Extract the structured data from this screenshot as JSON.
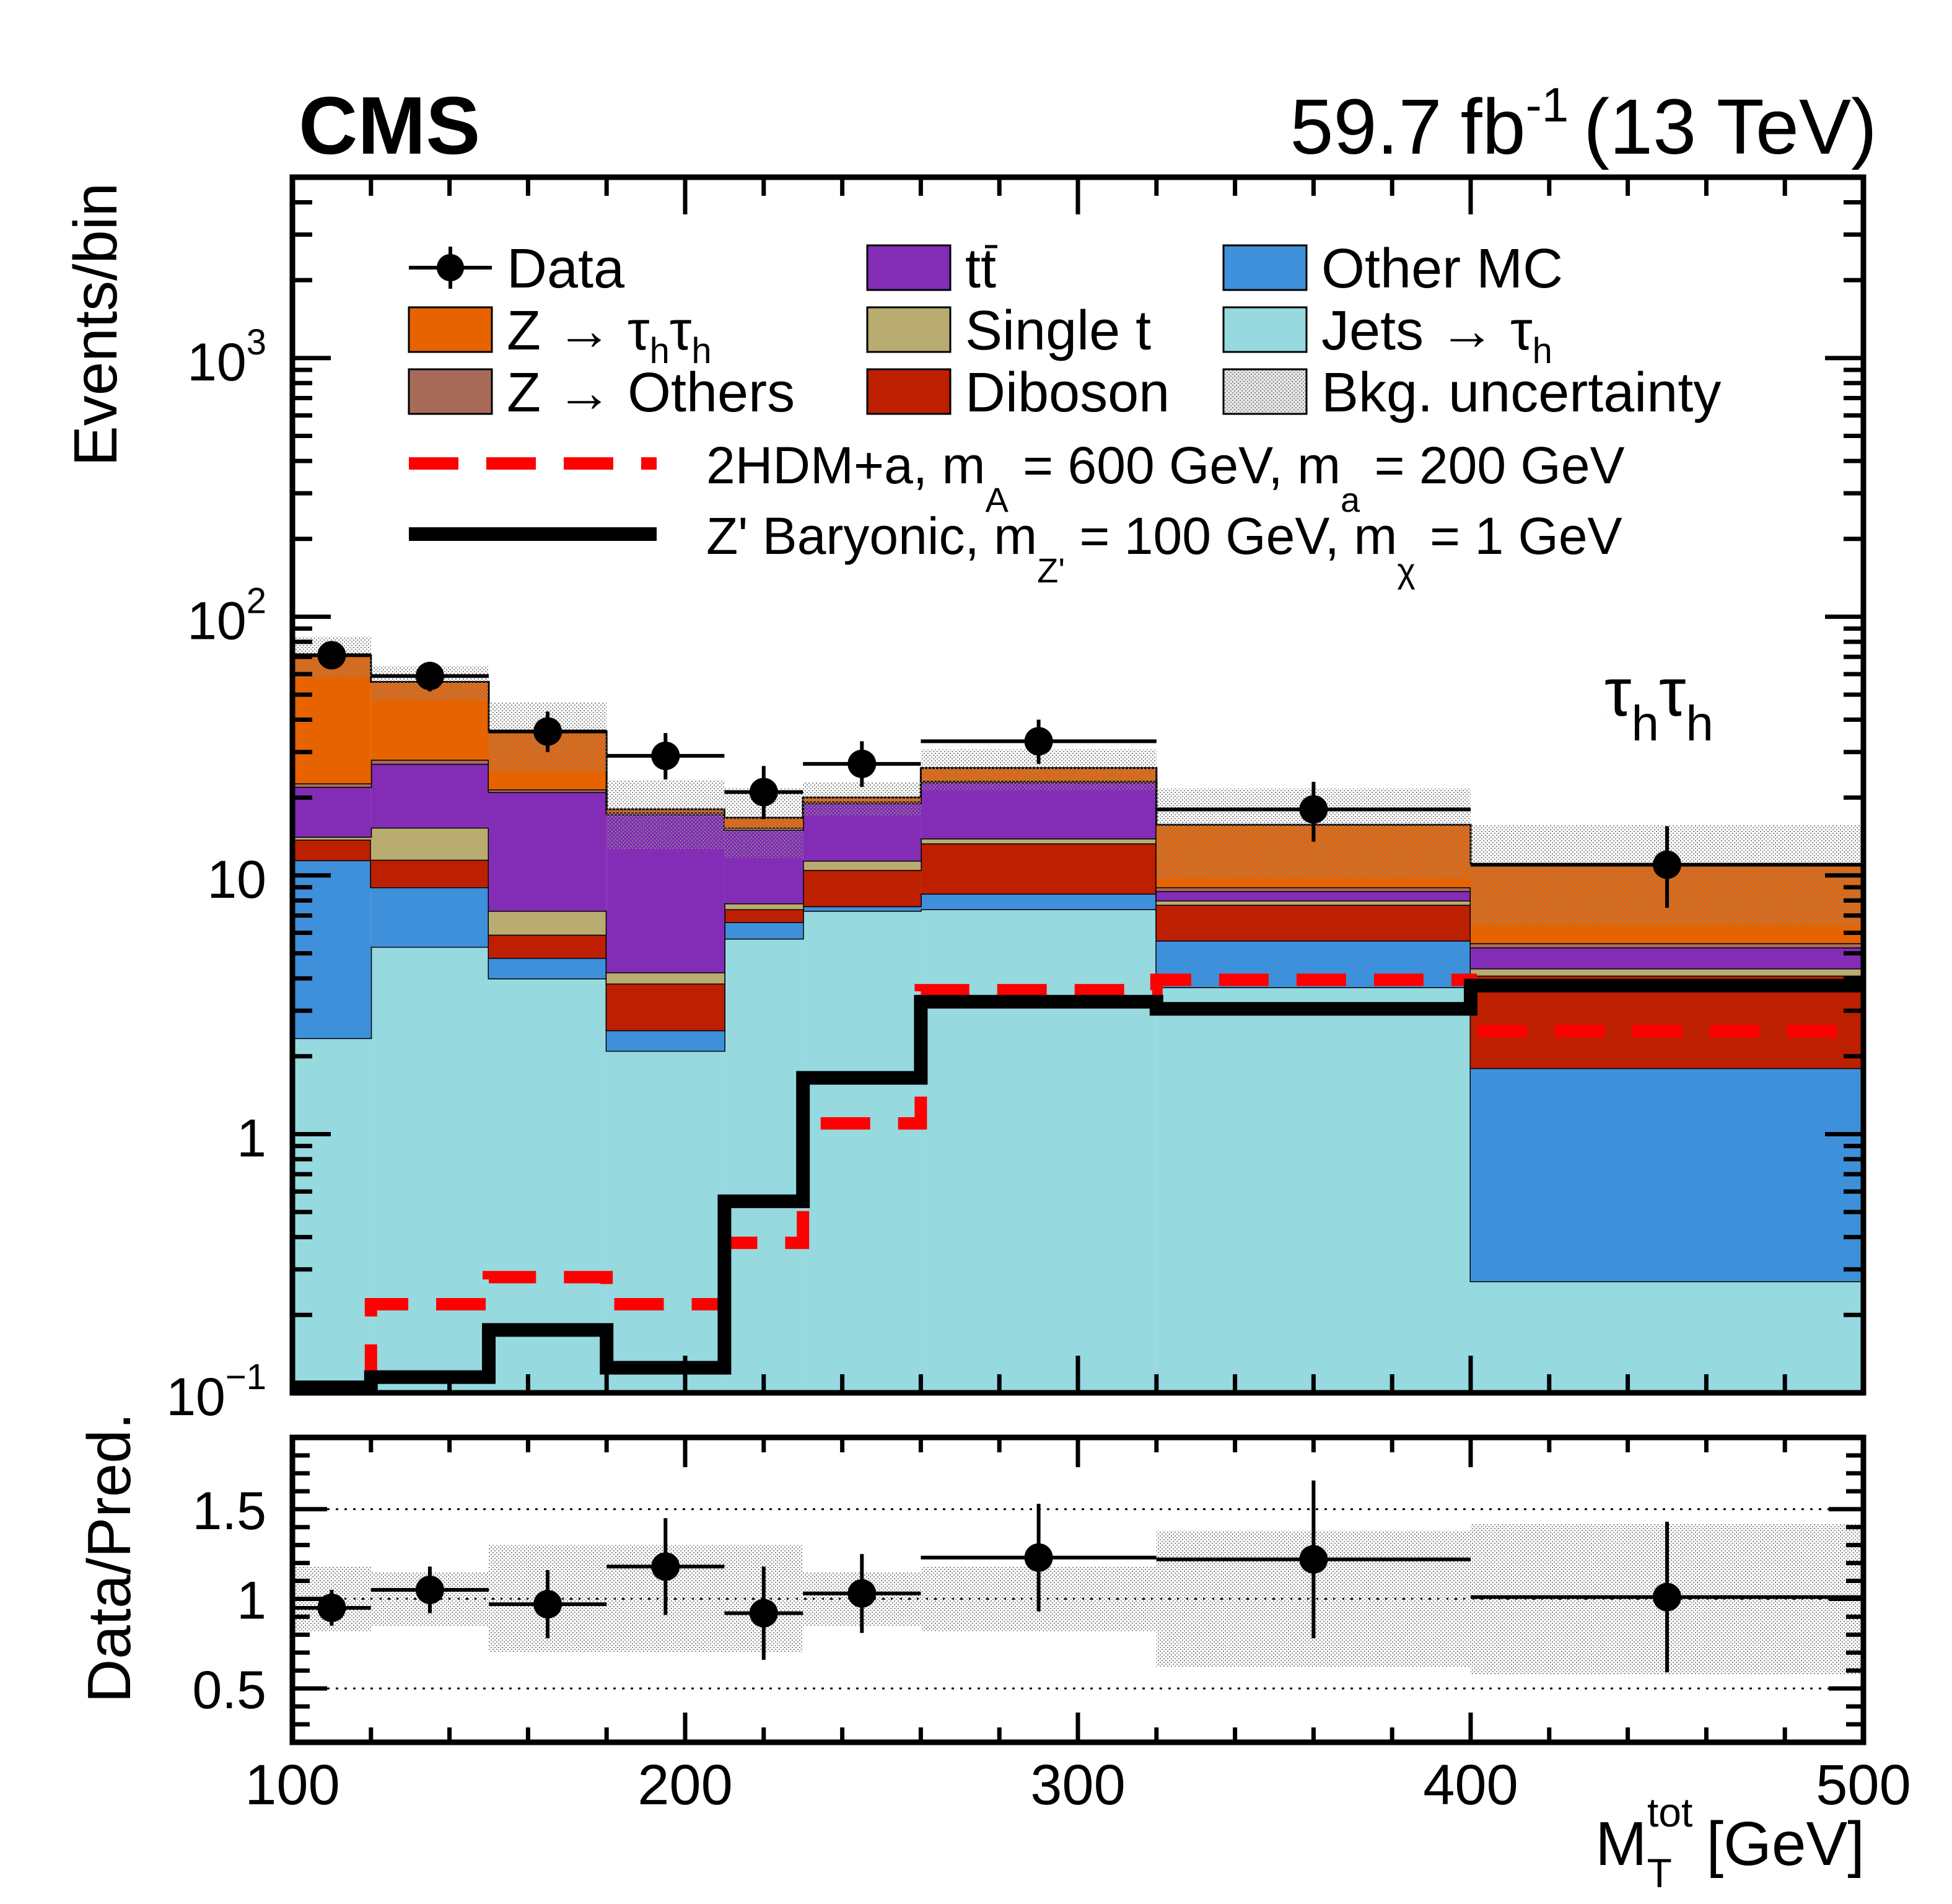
{
  "chart_data": {
    "type": "bar",
    "subtype": "stacked-step-histogram-with-ratio-panel",
    "header": {
      "experiment": "CMS",
      "lumi_value": "59.7",
      "lumi_unit": "fb",
      "lumi_exp": "-1",
      "energy": "(13 TeV)"
    },
    "channel_label": "τhτh",
    "ylabel": "Events/bin",
    "ratio_ylabel": "Data/Pred.",
    "xlabel": "M_T^tot [GeV]",
    "xlabel_main": "M",
    "xlabel_sub": "T",
    "xlabel_sup": "tot",
    "xlabel_unit": "[GeV]",
    "xlim": [
      100,
      500
    ],
    "ylim": [
      0.1,
      5000
    ],
    "yscale": "log",
    "ratio_ylim": [
      0.2,
      1.9
    ],
    "x_ticks": [
      "100",
      "200",
      "300",
      "400",
      "500"
    ],
    "y_ticks": [
      {
        "value": 0.1,
        "base": "10",
        "exp": "−1"
      },
      {
        "value": 1,
        "base": "1",
        "exp": ""
      },
      {
        "value": 10,
        "base": "10",
        "exp": ""
      },
      {
        "value": 100,
        "base": "10",
        "exp": "2"
      },
      {
        "value": 1000,
        "base": "10",
        "exp": "3"
      }
    ],
    "ratio_y_ticks": [
      "0.5",
      "1",
      "1.5"
    ],
    "bin_edges": [
      100,
      120,
      150,
      180,
      210,
      230,
      260,
      320,
      400,
      500
    ],
    "stack": [
      {
        "name": "Jets → τh",
        "color": "#96d9df",
        "values": [
          2.35,
          5.3,
          4.0,
          2.1,
          5.7,
          7.3,
          7.4,
          3.7,
          0.27
        ]
      },
      {
        "name": "Other MC",
        "color": "#3f90da",
        "values": [
          9.1,
          3.7,
          0.8,
          0.42,
          0.9,
          0.3,
          1.1,
          1.9,
          1.53
        ]
      },
      {
        "name": "Diboson",
        "color": "#bd1f01",
        "values": [
          2.3,
          2.5,
          1.1,
          1.3,
          0.8,
          2.9,
          4.8,
          2.1,
          2.3
        ]
      },
      {
        "name": "Single t",
        "color": "#b9ac70",
        "values": [
          0.35,
          3.8,
          1.4,
          0.4,
          0.4,
          0.9,
          0.6,
          0.3,
          0.27
        ]
      },
      {
        "name": "tt̄",
        "color": "#832db6",
        "values": [
          7.9,
          11.7,
          13.7,
          13.0,
          7.2,
          7.6,
          9.0,
          0.7,
          0.9
        ]
      },
      {
        "name": "Z → Others",
        "color": "#a96b59",
        "values": [
          0.7,
          1.0,
          0.5,
          0.3,
          0.3,
          0.3,
          0.3,
          0.3,
          0.2
        ]
      },
      {
        "name": "Z → τhτh",
        "color": "#e76300",
        "values": [
          48.3,
          28.0,
          14.5,
          0.5,
          1.4,
          0.7,
          2.8,
          6.7,
          5.6
        ]
      }
    ],
    "bkg_uncertainty": {
      "name": "Bkg. uncertainty",
      "rel": [
        0.18,
        0.15,
        0.3,
        0.3,
        0.3,
        0.15,
        0.18,
        0.38,
        0.42
      ]
    },
    "data": {
      "name": "Data",
      "x": [
        110,
        135,
        165,
        195,
        220,
        245,
        290,
        360,
        450
      ],
      "y": [
        71,
        59,
        36,
        29,
        21,
        27,
        33,
        18,
        11
      ],
      "err_up": [
        9,
        8,
        7,
        6.5,
        5.5,
        6,
        7,
        5,
        4.5
      ],
      "err_down": [
        8,
        7.5,
        6,
        5.5,
        4.5,
        5,
        6,
        4.5,
        3.5
      ]
    },
    "ratio": {
      "x": [
        110,
        135,
        165,
        195,
        220,
        245,
        290,
        360,
        450
      ],
      "y": [
        0.95,
        1.05,
        0.97,
        1.18,
        0.92,
        1.03,
        1.23,
        1.22,
        1.01
      ],
      "err": [
        0.1,
        0.13,
        0.19,
        0.27,
        0.26,
        0.22,
        0.3,
        0.44,
        0.42
      ]
    },
    "signals": [
      {
        "name": "2HDM+a, m_A = 600 GeV, m_a = 200 GeV",
        "color": "#ff0000",
        "style": "dashed",
        "values": [
          0.1,
          0.22,
          0.28,
          0.22,
          0.38,
          1.1,
          3.6,
          3.95,
          2.5
        ]
      },
      {
        "name": "Z' Baryonic, m_Z' = 100 GeV, m_χ = 1 GeV",
        "color": "#000000",
        "style": "solid",
        "values": [
          0.105,
          0.115,
          0.175,
          0.125,
          0.55,
          1.65,
          3.25,
          3.05,
          3.75
        ]
      }
    ],
    "legend": {
      "placement": "top",
      "entries": [
        {
          "label": "Data",
          "kind": "marker"
        },
        {
          "label": "tt",
          "kind": "box",
          "color": "#832db6"
        },
        {
          "label": "Other MC",
          "kind": "box",
          "color": "#3f90da"
        },
        {
          "label": "Z → ",
          "kind": "box",
          "color": "#e76300",
          "sub": "h",
          "tau2": true
        },
        {
          "label": "Single t",
          "kind": "box",
          "color": "#b9ac70"
        },
        {
          "label": "Jets → ",
          "kind": "box",
          "color": "#96d9df",
          "sub": "h",
          "tau1": true
        },
        {
          "label": "Z → Others",
          "kind": "box",
          "color": "#a96b59"
        },
        {
          "label": "Diboson",
          "kind": "box",
          "color": "#bd1f01"
        },
        {
          "label": "Bkg. uncertainty",
          "kind": "hatch"
        }
      ],
      "signal_labels": [
        {
          "part1": "2HDM+a, m",
          "sub1": "A",
          "part2": " = 600 GeV, m",
          "sub2": "a",
          "part3": " = 200 GeV"
        },
        {
          "part1": "Z' Baryonic, m",
          "sub1": "Z'",
          "part2": " = 100 GeV, m",
          "sub2": "χ",
          "part3": " = 1 GeV"
        }
      ]
    }
  }
}
